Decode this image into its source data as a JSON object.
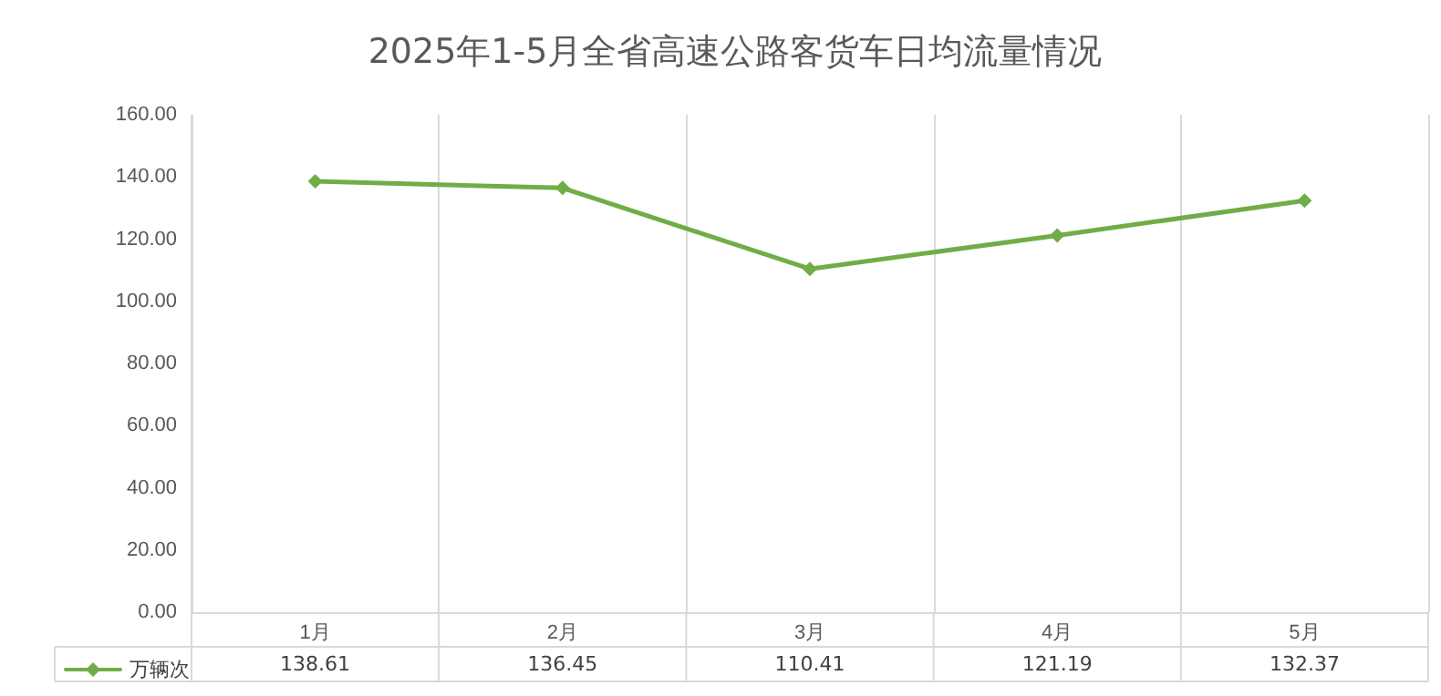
{
  "chart_data": {
    "type": "line",
    "title": "2025年1-5月全省高速公路客货车日均流量情况",
    "categories": [
      "1月",
      "2月",
      "3月",
      "4月",
      "5月"
    ],
    "series": [
      {
        "name": "万辆次",
        "color": "#70ad47",
        "values": [
          138.61,
          136.45,
          110.41,
          121.19,
          132.37
        ]
      }
    ],
    "ylim": [
      0,
      160
    ],
    "yticks": [
      {
        "value": 0,
        "label": "0.00"
      },
      {
        "value": 20,
        "label": "20.00"
      },
      {
        "value": 40,
        "label": "40.00"
      },
      {
        "value": 60,
        "label": "60.00"
      },
      {
        "value": 80,
        "label": "80.00"
      },
      {
        "value": 100,
        "label": "100.00"
      },
      {
        "value": 120,
        "label": "120.00"
      },
      {
        "value": 140,
        "label": "140.00"
      },
      {
        "value": 160,
        "label": "160.00"
      }
    ],
    "grid": "x",
    "legend": "bottom left",
    "marker": "diamond",
    "line_style": "solid",
    "data_labels": true
  }
}
